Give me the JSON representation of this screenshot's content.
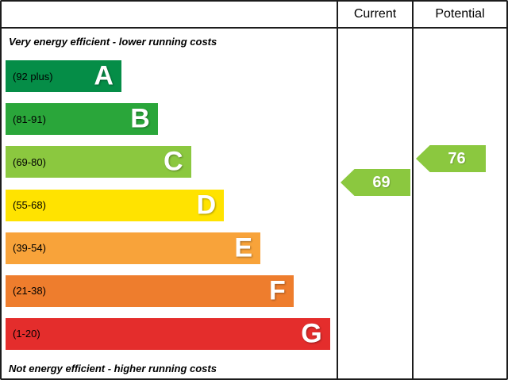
{
  "header": {
    "current_label": "Current",
    "potential_label": "Potential"
  },
  "chart_data": {
    "type": "bar",
    "title": "",
    "top_caption": "Very energy efficient - lower running costs",
    "bottom_caption": "Not energy efficient - higher running costs",
    "bands": [
      {
        "letter": "A",
        "range": "(92 plus)",
        "color": "#058d47",
        "width_pct": 35
      },
      {
        "letter": "B",
        "range": "(81-91)",
        "color": "#2aa63a",
        "width_pct": 46
      },
      {
        "letter": "C",
        "range": "(69-80)",
        "color": "#8bc83f",
        "width_pct": 56
      },
      {
        "letter": "D",
        "range": "(55-68)",
        "color": "#ffe300",
        "width_pct": 66
      },
      {
        "letter": "E",
        "range": "(39-54)",
        "color": "#f8a33a",
        "width_pct": 77
      },
      {
        "letter": "F",
        "range": "(21-38)",
        "color": "#ee7d2d",
        "width_pct": 87
      },
      {
        "letter": "G",
        "range": "(1-20)",
        "color": "#e42d2c",
        "width_pct": 98
      }
    ],
    "current": {
      "value": 69,
      "band": "C",
      "color": "#8bc83f"
    },
    "potential": {
      "value": 76,
      "band": "C",
      "color": "#8bc83f"
    }
  }
}
